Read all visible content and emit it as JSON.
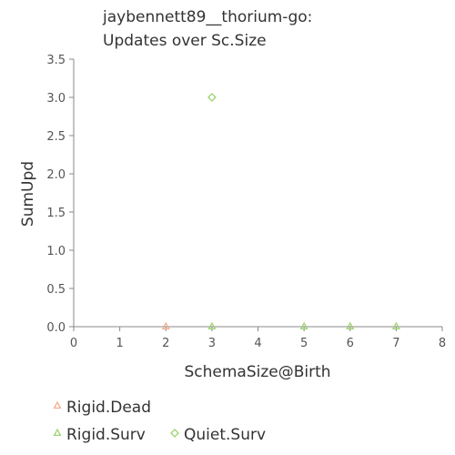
{
  "chart_data": {
    "type": "scatter",
    "title": [
      "jaybennett89__thorium-go:",
      "Updates over Sc.Size"
    ],
    "xlabel": "SchemaSize@Birth",
    "ylabel": "SumUpd",
    "xlim": [
      0,
      8
    ],
    "ylim": [
      0,
      3.5
    ],
    "xticks": [
      "0",
      "1",
      "2",
      "3",
      "4",
      "5",
      "6",
      "7",
      "8"
    ],
    "yticks": [
      "0.0",
      "0.5",
      "1.0",
      "1.5",
      "2.0",
      "2.5",
      "3.0",
      "3.5"
    ],
    "grid": false,
    "legend_position": "bottom-left",
    "series": [
      {
        "name": "Rigid.Dead",
        "marker": "triangle",
        "color": "#f4a582",
        "points": [
          [
            2,
            0
          ]
        ]
      },
      {
        "name": "Rigid.Surv",
        "marker": "triangle",
        "color": "#91cf60",
        "points": [
          [
            3,
            0
          ],
          [
            5,
            0
          ],
          [
            6,
            0
          ],
          [
            7,
            0
          ]
        ]
      },
      {
        "name": "Quiet.Surv",
        "marker": "diamond",
        "color": "#91cf60",
        "points": [
          [
            3,
            3
          ]
        ]
      }
    ]
  }
}
